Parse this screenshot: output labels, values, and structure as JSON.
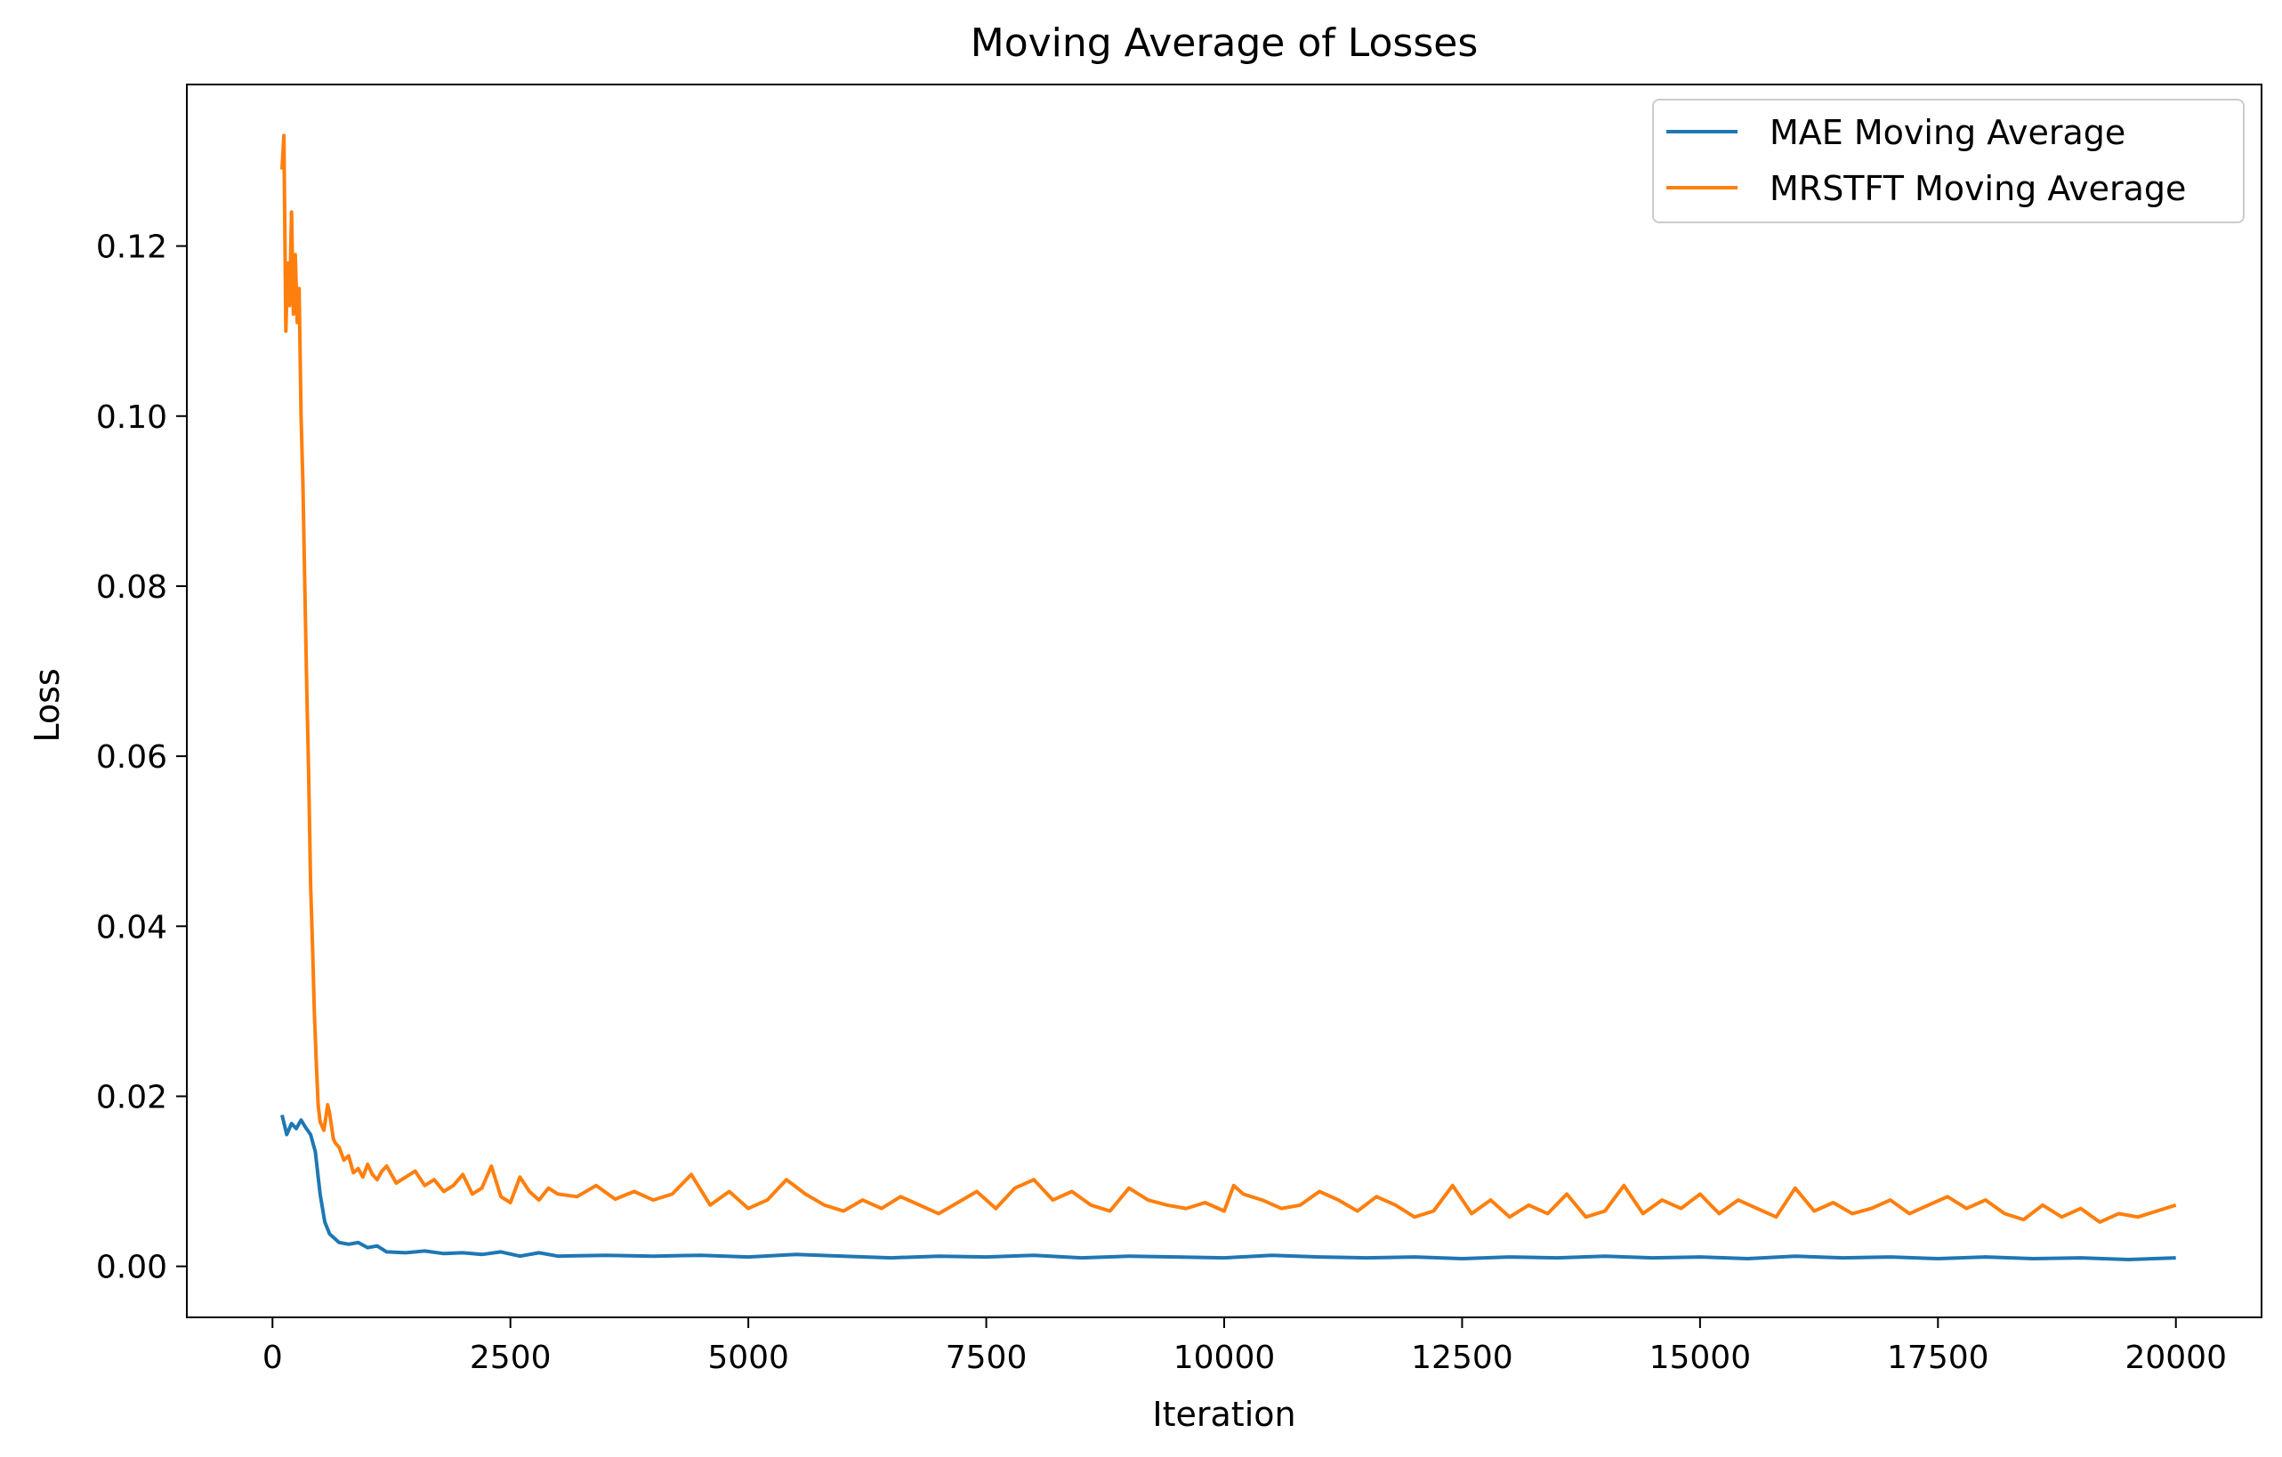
{
  "chart_data": {
    "type": "line",
    "title": "Moving Average of Losses",
    "xlabel": "Iteration",
    "ylabel": "Loss",
    "xlim": [
      -900,
      20900
    ],
    "ylim": [
      -0.006,
      0.139
    ],
    "xticks": [
      0,
      2500,
      5000,
      7500,
      10000,
      12500,
      15000,
      17500,
      20000
    ],
    "xtick_labels": [
      "0",
      "2500",
      "5000",
      "7500",
      "10000",
      "12500",
      "15000",
      "17500",
      "20000"
    ],
    "yticks": [
      0.0,
      0.02,
      0.04,
      0.06,
      0.08,
      0.1,
      0.12
    ],
    "ytick_labels": [
      "0.00",
      "0.02",
      "0.04",
      "0.06",
      "0.08",
      "0.10",
      "0.12"
    ],
    "grid": false,
    "legend_position": "top-right",
    "series": [
      {
        "name": "MAE Moving Average",
        "color": "#1f77b4",
        "x": [
          100,
          150,
          200,
          250,
          300,
          350,
          400,
          450,
          500,
          550,
          600,
          700,
          800,
          900,
          1000,
          1100,
          1200,
          1400,
          1600,
          1800,
          2000,
          2200,
          2400,
          2600,
          2800,
          3000,
          3500,
          4000,
          4500,
          5000,
          5500,
          6000,
          6500,
          7000,
          7500,
          8000,
          8500,
          9000,
          9500,
          10000,
          10500,
          11000,
          11500,
          12000,
          12500,
          13000,
          13500,
          14000,
          14500,
          15000,
          15500,
          16000,
          16500,
          17000,
          17500,
          18000,
          18500,
          19000,
          19500,
          20000
        ],
        "y": [
          0.0178,
          0.0155,
          0.0168,
          0.0162,
          0.0172,
          0.0163,
          0.0155,
          0.0135,
          0.0085,
          0.0052,
          0.0038,
          0.0028,
          0.0026,
          0.0028,
          0.0022,
          0.0024,
          0.0017,
          0.0016,
          0.0018,
          0.0015,
          0.0016,
          0.0014,
          0.0017,
          0.0012,
          0.0016,
          0.0012,
          0.0013,
          0.0012,
          0.0013,
          0.0011,
          0.0014,
          0.0012,
          0.001,
          0.0012,
          0.0011,
          0.0013,
          0.001,
          0.0012,
          0.0011,
          0.001,
          0.0013,
          0.0011,
          0.001,
          0.0011,
          0.0009,
          0.0011,
          0.001,
          0.0012,
          0.001,
          0.0011,
          0.0009,
          0.0012,
          0.001,
          0.0011,
          0.0009,
          0.0011,
          0.0009,
          0.001,
          0.0008,
          0.001
        ]
      },
      {
        "name": "MRSTFT Moving Average",
        "color": "#ff7f0e",
        "x": [
          100,
          120,
          140,
          160,
          180,
          200,
          220,
          240,
          260,
          280,
          300,
          320,
          340,
          360,
          380,
          400,
          420,
          440,
          460,
          480,
          500,
          520,
          540,
          560,
          580,
          600,
          620,
          640,
          660,
          700,
          750,
          800,
          850,
          900,
          950,
          1000,
          1050,
          1100,
          1150,
          1200,
          1300,
          1400,
          1500,
          1600,
          1700,
          1800,
          1900,
          2000,
          2100,
          2200,
          2300,
          2400,
          2500,
          2600,
          2700,
          2800,
          2900,
          3000,
          3200,
          3400,
          3600,
          3800,
          4000,
          4200,
          4400,
          4600,
          4800,
          5000,
          5200,
          5400,
          5600,
          5800,
          6000,
          6200,
          6400,
          6600,
          6800,
          7000,
          7200,
          7400,
          7600,
          7800,
          8000,
          8200,
          8400,
          8600,
          8800,
          9000,
          9200,
          9400,
          9600,
          9800,
          10000,
          10100,
          10200,
          10400,
          10600,
          10800,
          11000,
          11200,
          11400,
          11600,
          11800,
          12000,
          12200,
          12400,
          12600,
          12800,
          13000,
          13200,
          13400,
          13600,
          13800,
          14000,
          14200,
          14400,
          14600,
          14800,
          15000,
          15200,
          15400,
          15600,
          15800,
          16000,
          16200,
          16400,
          16600,
          16800,
          17000,
          17200,
          17400,
          17600,
          17800,
          18000,
          18200,
          18400,
          18600,
          18800,
          19000,
          19200,
          19400,
          19600,
          19800,
          20000
        ],
        "y": [
          0.129,
          0.133,
          0.11,
          0.118,
          0.113,
          0.124,
          0.112,
          0.119,
          0.111,
          0.115,
          0.1,
          0.092,
          0.08,
          0.068,
          0.058,
          0.045,
          0.038,
          0.03,
          0.024,
          0.019,
          0.017,
          0.0165,
          0.016,
          0.0175,
          0.019,
          0.018,
          0.0165,
          0.015,
          0.0145,
          0.014,
          0.0125,
          0.013,
          0.011,
          0.0115,
          0.0105,
          0.012,
          0.0108,
          0.0102,
          0.0112,
          0.0118,
          0.0098,
          0.0105,
          0.0112,
          0.0095,
          0.0102,
          0.0088,
          0.0095,
          0.0108,
          0.0085,
          0.0092,
          0.0118,
          0.0082,
          0.0075,
          0.0105,
          0.0088,
          0.0078,
          0.0092,
          0.0085,
          0.0082,
          0.0095,
          0.0079,
          0.0088,
          0.0078,
          0.0085,
          0.0108,
          0.0072,
          0.0088,
          0.0068,
          0.0078,
          0.0102,
          0.0085,
          0.0072,
          0.0065,
          0.0078,
          0.0068,
          0.0082,
          0.0072,
          0.0062,
          0.0075,
          0.0088,
          0.0068,
          0.0092,
          0.0102,
          0.0078,
          0.0088,
          0.0072,
          0.0065,
          0.0092,
          0.0078,
          0.0072,
          0.0068,
          0.0075,
          0.0065,
          0.0095,
          0.0085,
          0.0078,
          0.0068,
          0.0072,
          0.0088,
          0.0078,
          0.0065,
          0.0082,
          0.0072,
          0.0058,
          0.0065,
          0.0095,
          0.0062,
          0.0078,
          0.0058,
          0.0072,
          0.0062,
          0.0085,
          0.0058,
          0.0065,
          0.0095,
          0.0062,
          0.0078,
          0.0068,
          0.0085,
          0.0062,
          0.0078,
          0.0068,
          0.0058,
          0.0092,
          0.0065,
          0.0075,
          0.0062,
          0.0068,
          0.0078,
          0.0062,
          0.0072,
          0.0082,
          0.0068,
          0.0078,
          0.0062,
          0.0055,
          0.0072,
          0.0058,
          0.0068,
          0.0052,
          0.0062,
          0.0058,
          0.0065,
          0.0072
        ]
      }
    ]
  }
}
